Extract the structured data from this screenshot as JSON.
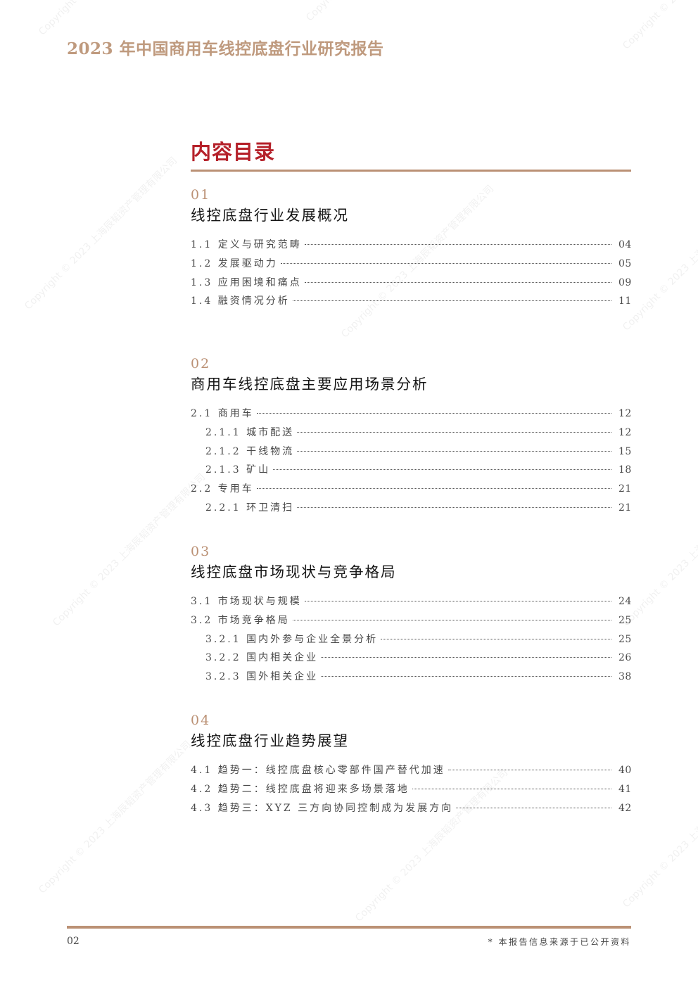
{
  "header": {
    "doc_title": "2023 年中国商用车线控底盘行业研究报告"
  },
  "toc": {
    "heading": "内容目录",
    "sections": [
      {
        "num": "01",
        "title": "线控底盘行业发展概况",
        "entries": [
          {
            "label": "1.1 定义与研究范畴",
            "page": "04",
            "sub": false
          },
          {
            "label": "1.2 发展驱动力",
            "page": "05",
            "sub": false
          },
          {
            "label": "1.3 应用困境和痛点",
            "page": "09",
            "sub": false
          },
          {
            "label": "1.4 融资情况分析",
            "page": "11",
            "sub": false
          }
        ]
      },
      {
        "num": "02",
        "title": "商用车线控底盘主要应用场景分析",
        "entries": [
          {
            "label": "2.1 商用车",
            "page": "12",
            "sub": false
          },
          {
            "label": "2.1.1 城市配送",
            "page": "12",
            "sub": true
          },
          {
            "label": "2.1.2 干线物流",
            "page": "15",
            "sub": true
          },
          {
            "label": "2.1.3 矿山",
            "page": "18",
            "sub": true
          },
          {
            "label": "2.2 专用车",
            "page": "21",
            "sub": false
          },
          {
            "label": "2.2.1 环卫清扫",
            "page": "21",
            "sub": true
          }
        ]
      },
      {
        "num": "03",
        "title": "线控底盘市场现状与竞争格局",
        "entries": [
          {
            "label": "3.1 市场现状与规模",
            "page": "24",
            "sub": false
          },
          {
            "label": "3.2 市场竞争格局",
            "page": "25",
            "sub": false
          },
          {
            "label": "3.2.1 国内外参与企业全景分析",
            "page": "25",
            "sub": true
          },
          {
            "label": "3.2.2 国内相关企业",
            "page": "26",
            "sub": true
          },
          {
            "label": "3.2.3 国外相关企业",
            "page": "38",
            "sub": true
          }
        ]
      },
      {
        "num": "04",
        "title": "线控底盘行业趋势展望",
        "entries": [
          {
            "label": "4.1 趋势一：线控底盘核心零部件国产替代加速",
            "page": "40",
            "sub": false
          },
          {
            "label": "4.2 趋势二：线控底盘将迎来多场景落地",
            "page": "41",
            "sub": false
          },
          {
            "label": "4.3 趋势三：XYZ 三方向协同控制成为发展方向",
            "page": "42",
            "sub": false
          }
        ]
      }
    ]
  },
  "footer": {
    "page_number": "02",
    "source_note": "* 本报告信息来源于已公开资料"
  },
  "watermark": "Copyright © 2023 上海辰韬资产管理有限公司",
  "colors": {
    "accent": "#bb9175",
    "heading_red": "#b5212a"
  }
}
